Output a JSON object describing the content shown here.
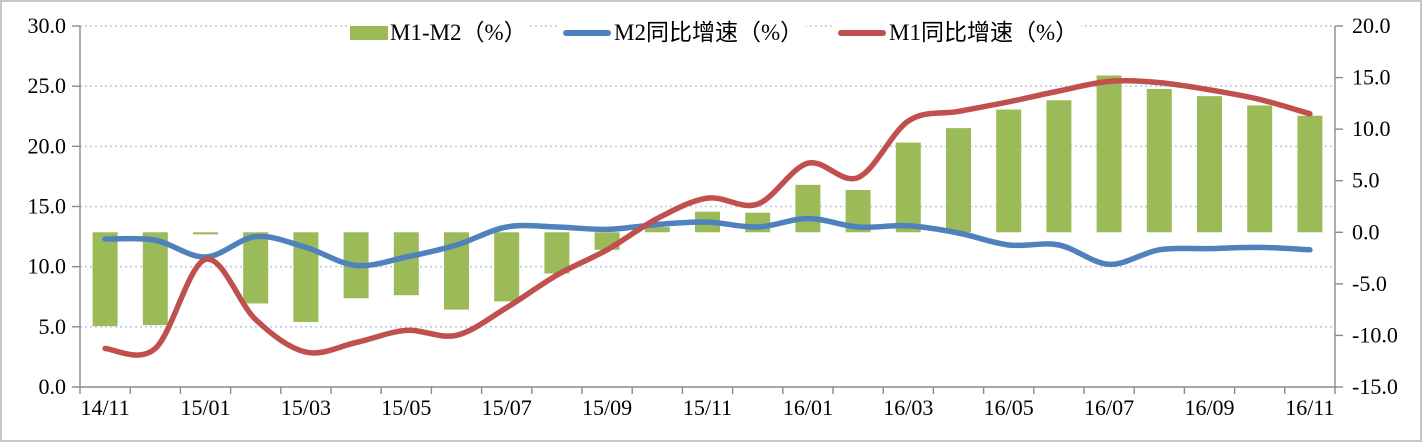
{
  "chart_data": {
    "type": "combo-bar-line",
    "title": "",
    "x_categories": [
      "14/11",
      "14/12",
      "15/01",
      "15/02",
      "15/03",
      "15/04",
      "15/05",
      "15/06",
      "15/07",
      "15/08",
      "15/09",
      "15/10",
      "15/11",
      "15/12",
      "16/01",
      "16/02",
      "16/03",
      "16/04",
      "16/05",
      "16/06",
      "16/07",
      "16/08",
      "16/09",
      "16/10",
      "16/11"
    ],
    "x_tick_labels": [
      "14/11",
      "15/01",
      "15/03",
      "15/05",
      "15/07",
      "15/09",
      "15/11",
      "16/01",
      "16/03",
      "16/05",
      "16/07",
      "16/09",
      "16/11"
    ],
    "x_tick_label_every": 2,
    "series": [
      {
        "name": "M1-M2（%）",
        "type": "bar",
        "axis": "right",
        "color": "#9bbb59",
        "values": [
          -9.1,
          -9.0,
          -0.2,
          -6.9,
          -8.7,
          -6.4,
          -6.1,
          -7.5,
          -6.7,
          -4.0,
          -1.7,
          0.5,
          2.0,
          1.9,
          4.6,
          4.1,
          8.7,
          10.1,
          11.9,
          12.8,
          15.2,
          13.9,
          13.2,
          12.3,
          11.3
        ]
      },
      {
        "name": "M2同比增速（%）",
        "type": "line",
        "axis": "left",
        "color": "#4f81bd",
        "values": [
          12.3,
          12.2,
          10.8,
          12.5,
          11.6,
          10.1,
          10.8,
          11.8,
          13.3,
          13.3,
          13.1,
          13.5,
          13.7,
          13.3,
          14.0,
          13.3,
          13.4,
          12.8,
          11.8,
          11.8,
          10.2,
          11.4,
          11.5,
          11.6,
          11.4
        ]
      },
      {
        "name": "M1同比增速（%）",
        "type": "line",
        "axis": "left",
        "color": "#c0504d",
        "values": [
          3.2,
          3.2,
          10.6,
          5.6,
          2.9,
          3.7,
          4.7,
          4.3,
          6.6,
          9.3,
          11.4,
          14.0,
          15.7,
          15.2,
          18.6,
          17.4,
          22.1,
          22.9,
          23.7,
          24.6,
          25.4,
          25.3,
          24.7,
          23.9,
          22.7
        ]
      }
    ],
    "left_axis": {
      "min": 0,
      "max": 30,
      "tick_labels": [
        "30.0",
        "25.0",
        "20.0",
        "15.0",
        "10.0",
        "5.0",
        "0.0"
      ]
    },
    "right_axis": {
      "min": -15,
      "max": 20,
      "tick_labels": [
        "20.0",
        "15.0",
        "10.0",
        "5.0",
        "0.0",
        "-5.0",
        "-10.0",
        "-15.0"
      ]
    },
    "grid": "horizontal-dotted",
    "gridline_color": "#b8cce4",
    "axis_line_color": "#8a8a8a",
    "legend_position": "top"
  },
  "legend": {
    "items": [
      {
        "label": "M1-M2（%）",
        "swatch": "bar",
        "color": "#9bbb59"
      },
      {
        "label": "M2同比增速（%）",
        "swatch": "line",
        "color": "#4f81bd"
      },
      {
        "label": "M1同比增速（%）",
        "swatch": "line",
        "color": "#c0504d"
      }
    ]
  }
}
